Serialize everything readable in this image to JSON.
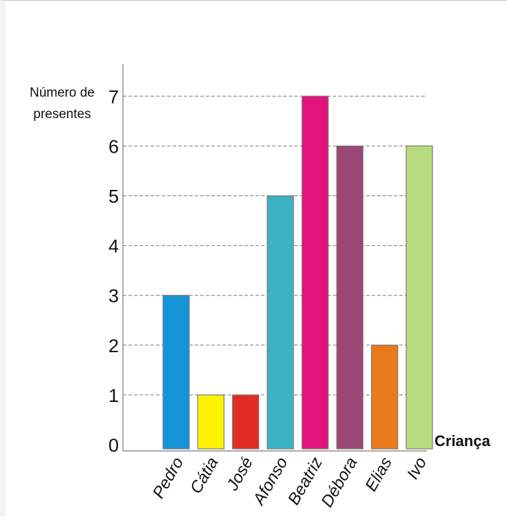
{
  "chart_data": {
    "type": "bar",
    "title": "",
    "ylabel_lines": [
      "Número de",
      "presentes"
    ],
    "xlabel": "Criança",
    "ylim": [
      0,
      7
    ],
    "yticks": [
      0,
      1,
      2,
      3,
      4,
      5,
      6,
      7
    ],
    "grid": "dashed lines at values 1–7",
    "categories": [
      "Pedro",
      "Cátia",
      "José",
      "Afonso",
      "Beatriz",
      "Débora",
      "Elias",
      "Ivo"
    ],
    "values": [
      3,
      1,
      1,
      5,
      7,
      6,
      2,
      6
    ],
    "colors": [
      "#1793D8",
      "#FFF200",
      "#E12B23",
      "#3BB3C3",
      "#E2137D",
      "#9A4677",
      "#EA7A1B",
      "#B8DC7D"
    ]
  }
}
